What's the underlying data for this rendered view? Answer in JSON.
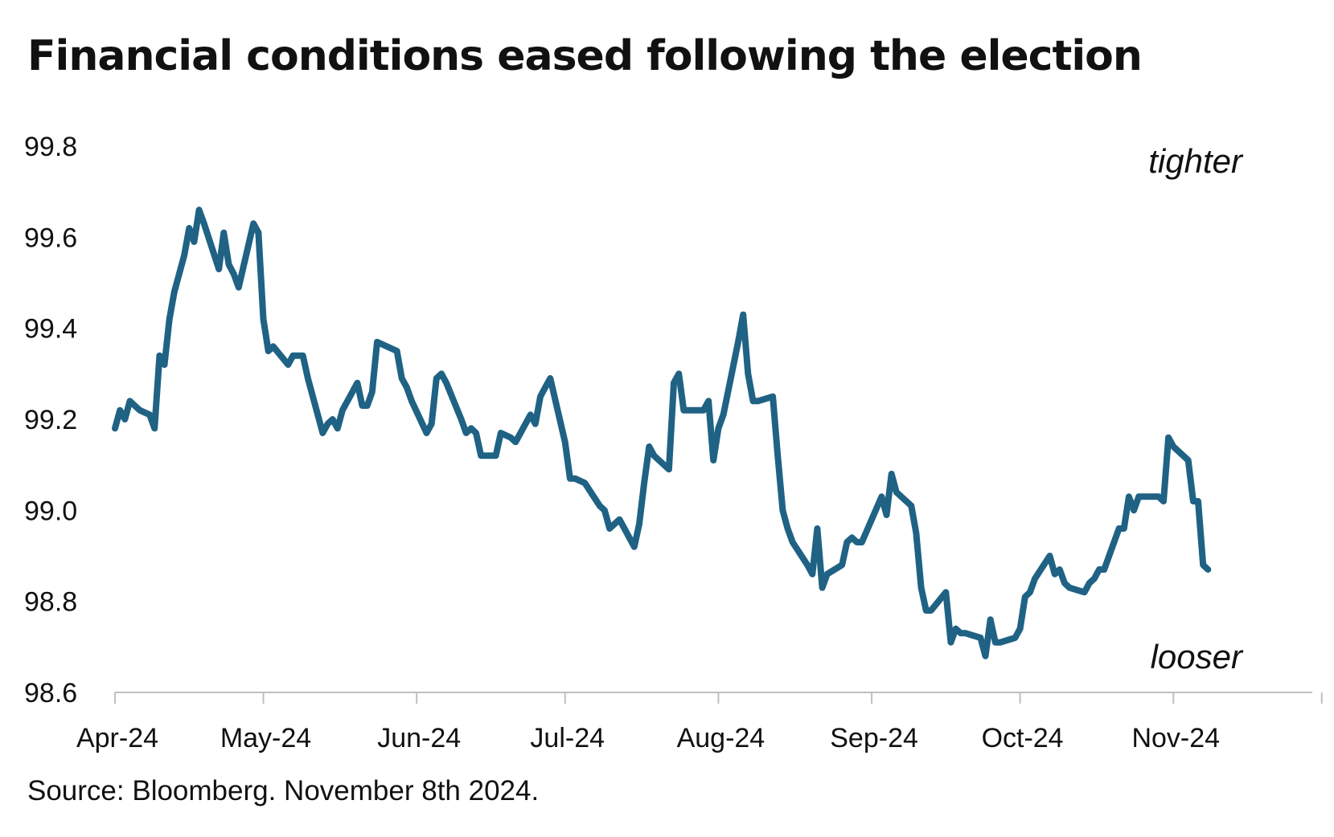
{
  "chart_data": {
    "type": "line",
    "title": "Financial conditions eased following the election",
    "source": "Source: Bloomberg. November 8th 2024.",
    "xlabel": "",
    "ylabel": "",
    "x_ticks": [
      "Apr-24",
      "May-24",
      "Jun-24",
      "Jul-24",
      "Aug-24",
      "Sep-24",
      "Oct-24",
      "Nov-24"
    ],
    "y_ticks": [
      "99.8",
      "99.6",
      "99.4",
      "99.2",
      "99.0",
      "98.8",
      "98.6"
    ],
    "ylim": [
      98.6,
      99.8
    ],
    "xlim": [
      "2024-04-01",
      "2024-12-01"
    ],
    "grid": false,
    "annotations": [
      {
        "text": "tighter",
        "position": "top-right"
      },
      {
        "text": "looser",
        "position": "bottom-right"
      }
    ],
    "line_color": "#1f6284",
    "series": [
      {
        "x": [
          "2024-04-01",
          "2024-04-02",
          "2024-04-03",
          "2024-04-04",
          "2024-04-05",
          "2024-04-06",
          "2024-04-08",
          "2024-04-09",
          "2024-04-10",
          "2024-04-11",
          "2024-04-12",
          "2024-04-13",
          "2024-04-15",
          "2024-04-16",
          "2024-04-17",
          "2024-04-18",
          "2024-04-19",
          "2024-04-22",
          "2024-04-23",
          "2024-04-24",
          "2024-04-25",
          "2024-04-26",
          "2024-04-29",
          "2024-04-30",
          "2024-05-01",
          "2024-05-02",
          "2024-05-03",
          "2024-05-06",
          "2024-05-07",
          "2024-05-08",
          "2024-05-09",
          "2024-05-10",
          "2024-05-13",
          "2024-05-14",
          "2024-05-15",
          "2024-05-16",
          "2024-05-17",
          "2024-05-20",
          "2024-05-21",
          "2024-05-22",
          "2024-05-23",
          "2024-05-24",
          "2024-05-28",
          "2024-05-29",
          "2024-05-30",
          "2024-05-31",
          "2024-06-03",
          "2024-06-04",
          "2024-06-05",
          "2024-06-06",
          "2024-06-07",
          "2024-06-10",
          "2024-06-11",
          "2024-06-12",
          "2024-06-13",
          "2024-06-14",
          "2024-06-17",
          "2024-06-18",
          "2024-06-20",
          "2024-06-21",
          "2024-06-24",
          "2024-06-25",
          "2024-06-26",
          "2024-06-27",
          "2024-06-28",
          "2024-07-01",
          "2024-07-02",
          "2024-07-03",
          "2024-07-05",
          "2024-07-08",
          "2024-07-09",
          "2024-07-10",
          "2024-07-11",
          "2024-07-12",
          "2024-07-15",
          "2024-07-16",
          "2024-07-17",
          "2024-07-18",
          "2024-07-19",
          "2024-07-22",
          "2024-07-23",
          "2024-07-24",
          "2024-07-25",
          "2024-07-26",
          "2024-07-29",
          "2024-07-30",
          "2024-07-31",
          "2024-08-01",
          "2024-08-02",
          "2024-08-05",
          "2024-08-06",
          "2024-08-07",
          "2024-08-08",
          "2024-08-09",
          "2024-08-12",
          "2024-08-13",
          "2024-08-14",
          "2024-08-15",
          "2024-08-16",
          "2024-08-19",
          "2024-08-20",
          "2024-08-21",
          "2024-08-22",
          "2024-08-23",
          "2024-08-26",
          "2024-08-27",
          "2024-08-28",
          "2024-08-29",
          "2024-08-30",
          "2024-09-03",
          "2024-09-04",
          "2024-09-05",
          "2024-09-06",
          "2024-09-09",
          "2024-09-10",
          "2024-09-11",
          "2024-09-12",
          "2024-09-13",
          "2024-09-16",
          "2024-09-17",
          "2024-09-18",
          "2024-09-19",
          "2024-09-20",
          "2024-09-23",
          "2024-09-24",
          "2024-09-25",
          "2024-09-26",
          "2024-09-27",
          "2024-09-30",
          "2024-10-01",
          "2024-10-02",
          "2024-10-03",
          "2024-10-04",
          "2024-10-07",
          "2024-10-08",
          "2024-10-09",
          "2024-10-10",
          "2024-10-11",
          "2024-10-14",
          "2024-10-15",
          "2024-10-16",
          "2024-10-17",
          "2024-10-18",
          "2024-10-21",
          "2024-10-22",
          "2024-10-23",
          "2024-10-24",
          "2024-10-25",
          "2024-10-28",
          "2024-10-29",
          "2024-10-30",
          "2024-10-31",
          "2024-11-01",
          "2024-11-04",
          "2024-11-05",
          "2024-11-06",
          "2024-11-07",
          "2024-11-08"
        ],
        "values": [
          99.18,
          99.22,
          99.2,
          99.24,
          99.23,
          99.22,
          99.21,
          99.18,
          99.34,
          99.32,
          99.42,
          99.48,
          99.56,
          99.62,
          99.59,
          99.66,
          99.63,
          99.53,
          99.61,
          99.54,
          99.52,
          99.49,
          99.63,
          99.61,
          99.42,
          99.35,
          99.36,
          99.32,
          99.34,
          99.34,
          99.34,
          99.29,
          99.17,
          99.19,
          99.2,
          99.18,
          99.22,
          99.28,
          99.23,
          99.23,
          99.26,
          99.37,
          99.35,
          99.29,
          99.27,
          99.24,
          99.17,
          99.19,
          99.29,
          99.3,
          99.28,
          99.2,
          99.17,
          99.18,
          99.17,
          99.12,
          99.12,
          99.17,
          99.16,
          99.15,
          99.21,
          99.19,
          99.25,
          99.27,
          99.29,
          99.15,
          99.07,
          99.07,
          99.06,
          99.01,
          99.0,
          98.96,
          98.97,
          98.98,
          98.92,
          98.97,
          99.06,
          99.14,
          99.12,
          99.09,
          99.28,
          99.3,
          99.22,
          99.22,
          99.22,
          99.24,
          99.11,
          99.18,
          99.21,
          99.37,
          99.43,
          99.3,
          99.24,
          99.24,
          99.25,
          99.12,
          99.0,
          98.96,
          98.93,
          98.88,
          98.86,
          98.96,
          98.83,
          98.86,
          98.88,
          98.93,
          98.94,
          98.93,
          98.93,
          99.03,
          98.99,
          99.08,
          99.04,
          99.01,
          98.95,
          98.83,
          98.78,
          98.78,
          98.82,
          98.71,
          98.74,
          98.73,
          98.73,
          98.72,
          98.68,
          98.76,
          98.71,
          98.71,
          98.72,
          98.74,
          98.81,
          98.82,
          98.85,
          98.9,
          98.86,
          98.87,
          98.84,
          98.83,
          98.82,
          98.84,
          98.85,
          98.87,
          98.87,
          98.96,
          98.96,
          99.03,
          99.0,
          99.03,
          99.03,
          99.03,
          99.02,
          99.16,
          99.14,
          99.11,
          99.02,
          99.02,
          98.88,
          98.87
        ]
      }
    ]
  }
}
